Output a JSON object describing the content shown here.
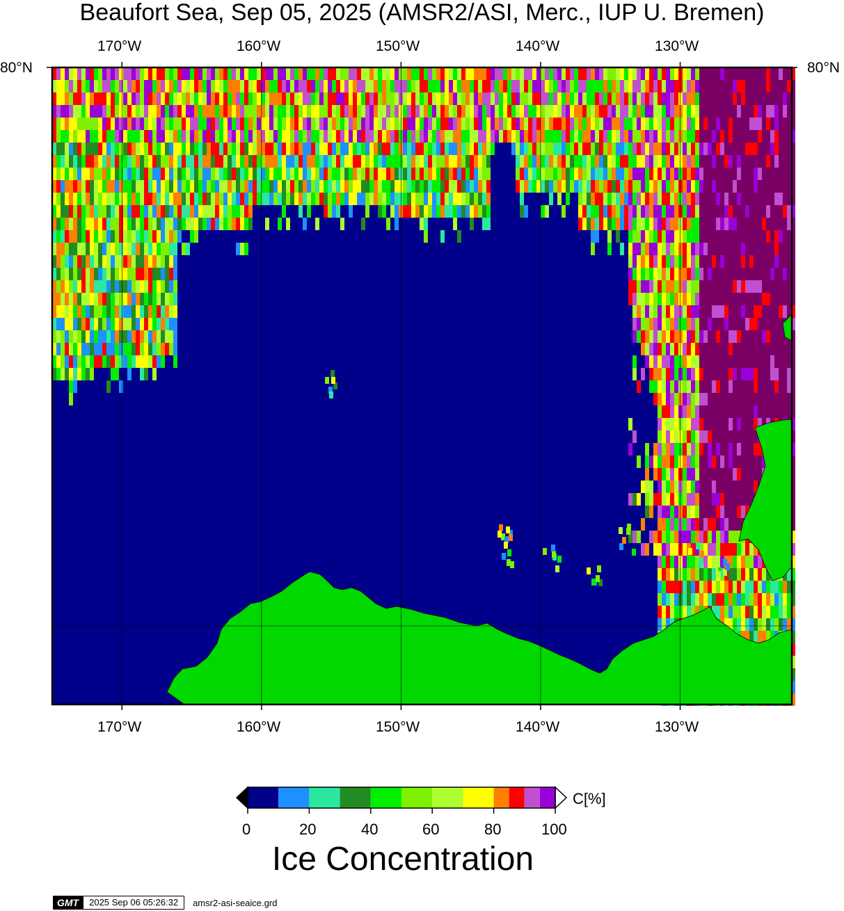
{
  "title": "Beaufort Sea, Sep 05, 2025 (AMSR2/ASI, Merc., IUP U. Bremen)",
  "map": {
    "lon_labels": [
      "170°W",
      "160°W",
      "150°W",
      "140°W",
      "130°W"
    ],
    "lon_values": [
      -170,
      -160,
      -150,
      -140,
      -130
    ],
    "lat_label_left": "80°N",
    "lat_label_right": "80°N",
    "ocean_color": "#00008b",
    "land_color": "#00d800",
    "grid": true
  },
  "colorbar": {
    "unit_label": "C[%]",
    "tick_labels": [
      "0",
      "20",
      "40",
      "60",
      "80",
      "100"
    ],
    "tick_values": [
      0,
      20,
      40,
      60,
      80,
      100
    ],
    "bins": [
      {
        "from": 0,
        "to": 10,
        "color": "#00008b"
      },
      {
        "from": 10,
        "to": 20,
        "color": "#1e90ff"
      },
      {
        "from": 20,
        "to": 30,
        "color": "#2ae8a0"
      },
      {
        "from": 30,
        "to": 40,
        "color": "#228b22"
      },
      {
        "from": 40,
        "to": 50,
        "color": "#00ee00"
      },
      {
        "from": 50,
        "to": 60,
        "color": "#7ff000"
      },
      {
        "from": 60,
        "to": 70,
        "color": "#adff2f"
      },
      {
        "from": 70,
        "to": 80,
        "color": "#ffff00"
      },
      {
        "from": 80,
        "to": 85,
        "color": "#ff7f00"
      },
      {
        "from": 85,
        "to": 90,
        "color": "#ff0000"
      },
      {
        "from": 90,
        "to": 95,
        "color": "#c050d0"
      },
      {
        "from": 95,
        "to": 100,
        "color": "#9a00d8"
      }
    ],
    "below_color": "#000000",
    "above_color": "#ffffff",
    "title": "Ice Concentration"
  },
  "footer": {
    "logo": "GMT",
    "timestamp": "2025 Sep 06 05:26:32",
    "filename": "amsr2-asi-seaice.grd"
  }
}
